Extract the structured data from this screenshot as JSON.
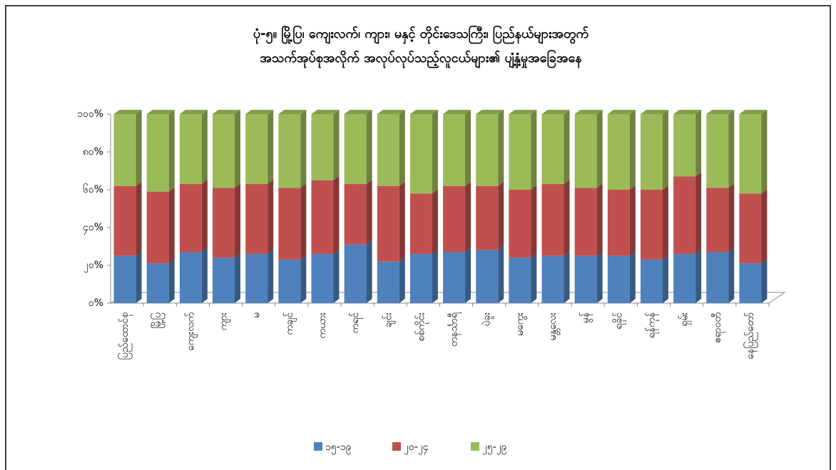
{
  "chart_data": {
    "type": "stacked_bar_100",
    "title": [
      "ပုံ-၅။ မြို့ပြ၊ ကျေးလက်၊ ကျား၊ မနှင့် တိုင်းဒေသကြီး၊ ပြည်နယ်များအတွက်",
      "အသက်အုပ်စုအလိုက် အလုပ်လုပ်သည့်လူငယ်များ၏ ပျံ့နှံ့မှုအခြေအနေ"
    ],
    "categories": [
      "ပြည်ထောင်စု",
      "မြို့ပြ",
      "ကျေးလက်",
      "ကျား",
      "မ",
      "ကချင်",
      "ကယား",
      "ကရင်",
      "ချင်း",
      "စစ်ကိုင်း",
      "တနင်္သာရီ",
      "ပဲခူး",
      "မကွေး",
      "မန္တလေး",
      "မွန်",
      "ရခိုင်",
      "ရန်ကုန်",
      "ရှမ်း",
      "ဧရာဝတီ",
      "နေပြည်တော်"
    ],
    "series": [
      {
        "name": "၁၅-၁၉",
        "color": "#4f81bd",
        "values": [
          25,
          21,
          27,
          24,
          26,
          23,
          26,
          31,
          22,
          26,
          27,
          28,
          24,
          25,
          25,
          25,
          23,
          26,
          27,
          21
        ]
      },
      {
        "name": "၂၀-၂၄",
        "color": "#c0504d",
        "values": [
          37,
          38,
          36,
          37,
          37,
          38,
          39,
          32,
          40,
          32,
          35,
          34,
          36,
          38,
          36,
          35,
          37,
          41,
          34,
          37
        ]
      },
      {
        "name": "၂၅-၂၉",
        "color": "#9bbb59",
        "values": [
          38,
          41,
          37,
          39,
          37,
          39,
          35,
          37,
          38,
          42,
          38,
          38,
          40,
          37,
          39,
          40,
          40,
          33,
          39,
          42
        ]
      }
    ],
    "ylim": [
      0,
      100
    ],
    "yticks": [
      {
        "value": 0,
        "label": "၀%"
      },
      {
        "value": 20,
        "label": "၂၀%"
      },
      {
        "value": 40,
        "label": "၄၀%"
      },
      {
        "value": 60,
        "label": "၆၀%"
      },
      {
        "value": 80,
        "label": "၈၀%"
      },
      {
        "value": 100,
        "label": "၁၀၀%"
      }
    ],
    "legend": "bottom"
  }
}
